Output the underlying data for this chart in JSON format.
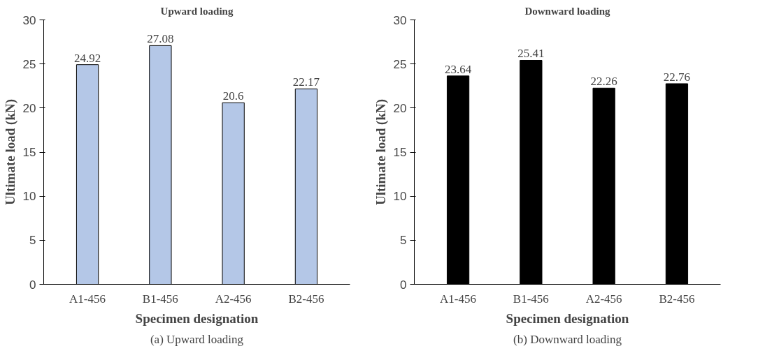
{
  "chart_data": [
    {
      "type": "bar",
      "title": "Upward loading",
      "xlabel": "Specimen designation",
      "ylabel": "Ultimate load (kN)",
      "categories": [
        "A1-456",
        "B1-456",
        "A2-456",
        "B2-456"
      ],
      "values": [
        24.92,
        27.08,
        20.6,
        22.17
      ],
      "color": "#b4c7e7",
      "ylim": [
        0,
        30
      ],
      "yticks": [
        0,
        5,
        10,
        15,
        20,
        25,
        30
      ],
      "data_labels": true,
      "grid": false,
      "annotations": [
        "(a) Upward loading"
      ]
    },
    {
      "type": "bar",
      "title": "Downward loading",
      "xlabel": "Specimen designation",
      "ylabel": "Ultimate load (kN)",
      "categories": [
        "A1-456",
        "B1-456",
        "A2-456",
        "B2-456"
      ],
      "values": [
        23.64,
        25.41,
        22.26,
        22.76
      ],
      "color": "#000000",
      "ylim": [
        0,
        30
      ],
      "yticks": [
        0,
        5,
        10,
        15,
        20,
        25,
        30
      ],
      "data_labels": true,
      "grid": false,
      "annotations": [
        "(b) Downward loading"
      ]
    }
  ]
}
